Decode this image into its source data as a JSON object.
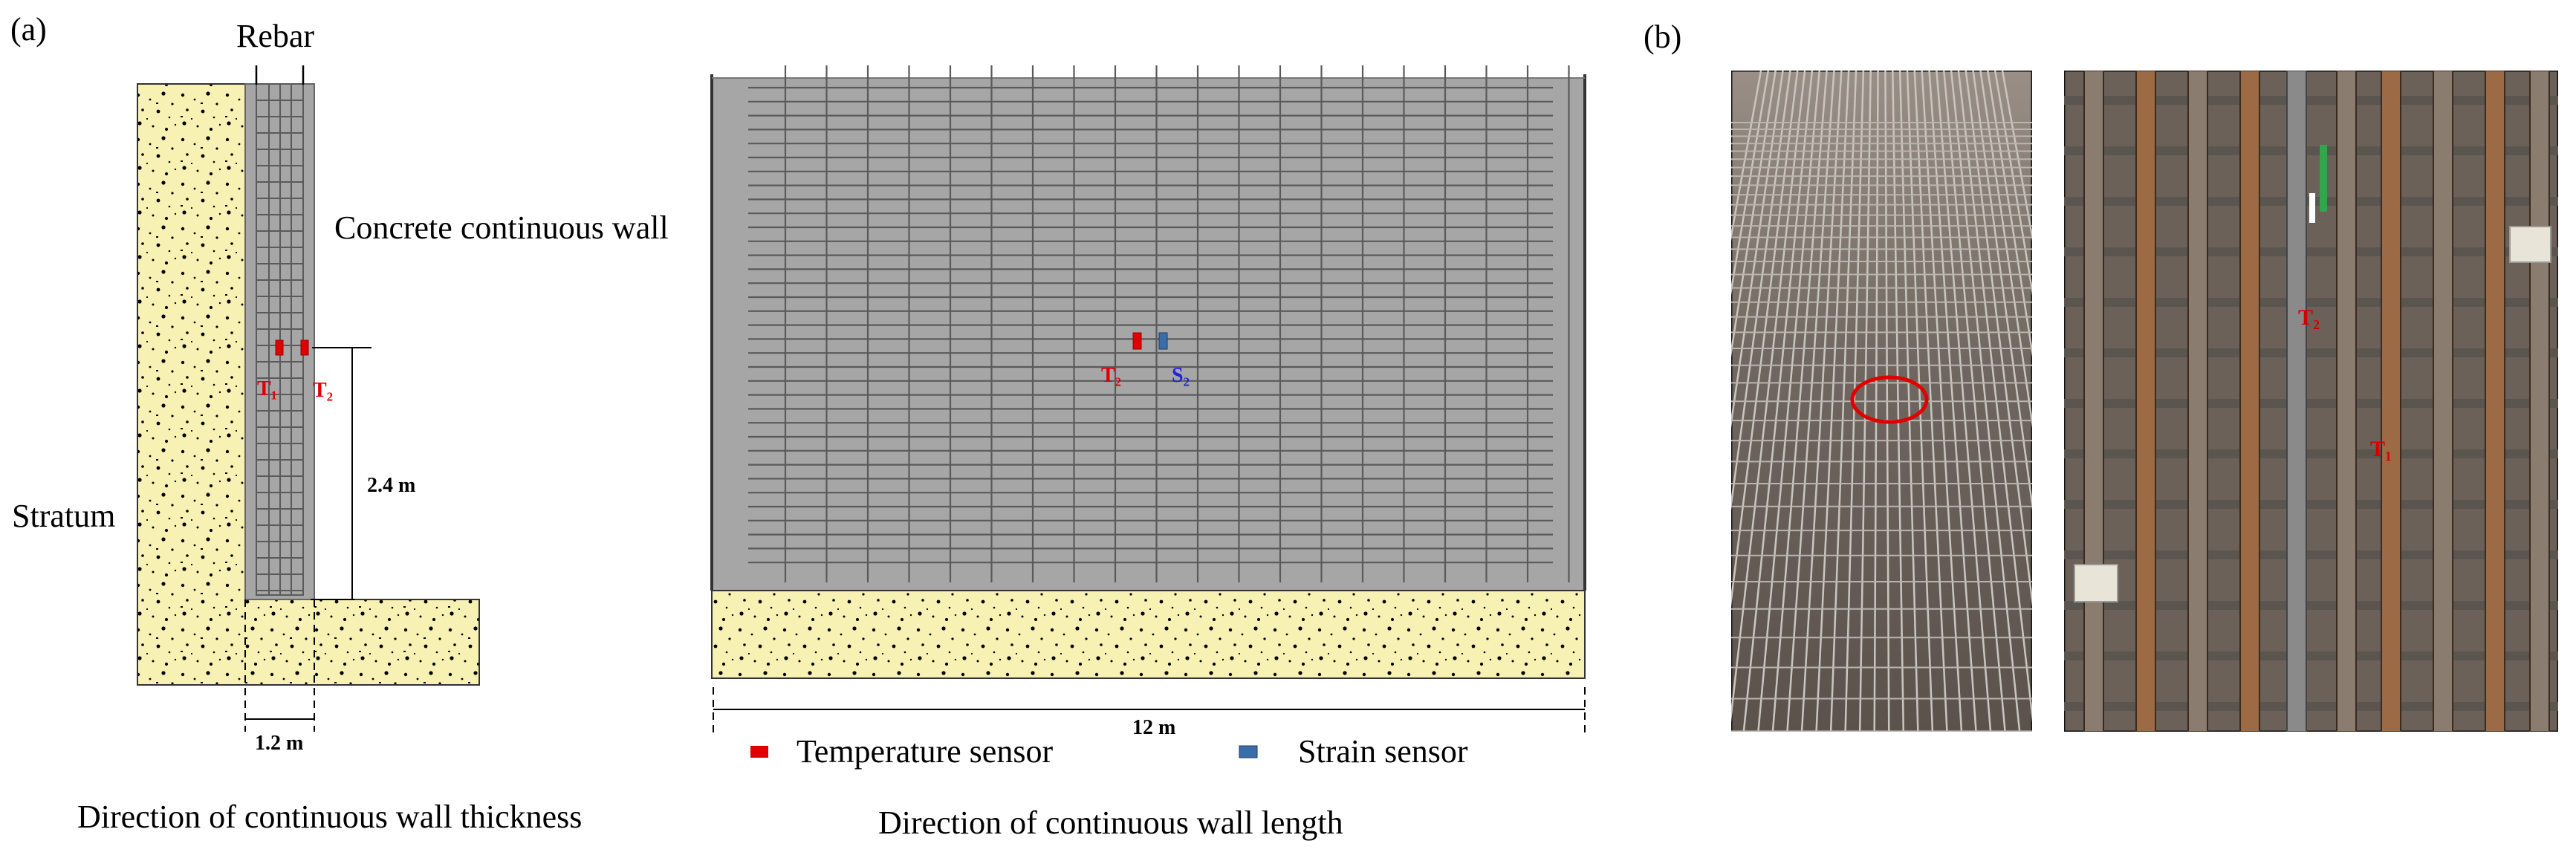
{
  "panel_a": {
    "tag": "(a)",
    "rebar_label": "Rebar",
    "stratum_label": "Stratum",
    "wall_label": "Concrete continuous wall",
    "sensor_t1": "T₁",
    "sensor_t2": "T₂",
    "height_dim": "2.4 m",
    "thickness_dim": "1.2 m",
    "caption_thickness": "Direction of continuous wall thickness",
    "sensor_t2_front": "T₂",
    "sensor_s2_front": "S₂",
    "length_dim": "12 m",
    "caption_length": "Direction of continuous wall length"
  },
  "legend": {
    "temperature": "Temperature sensor",
    "strain": "Strain sensor"
  },
  "panel_b": {
    "tag": "(b)",
    "photo_t2": "T₂",
    "photo_t1": "T₁"
  },
  "colors": {
    "stratum_fill": "#f7f2b4",
    "concrete_fill": "#a6a6a6",
    "rebar_line": "#5a5a5a",
    "temperature_sensor": "#e00000",
    "strain_sensor": "#3a6ea8",
    "photo_annotation": "#d40000"
  }
}
